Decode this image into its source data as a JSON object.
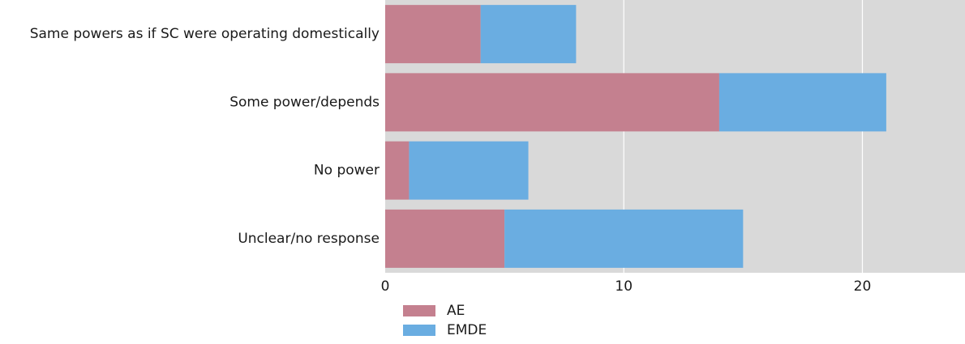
{
  "chart_data": {
    "type": "bar",
    "orientation": "horizontal",
    "stacked": true,
    "categories": [
      "Same powers as if SC were operating domestically",
      "Some power/depends",
      "No power",
      "Unclear/no response"
    ],
    "series": [
      {
        "name": "AE",
        "values": [
          4,
          14,
          1,
          5
        ],
        "color": "#c4808f"
      },
      {
        "name": "EMDE",
        "values": [
          4,
          7,
          5,
          10
        ],
        "color": "#6aade1"
      }
    ],
    "xlim": [
      0,
      24.3
    ],
    "xticks": [
      0,
      10,
      20
    ],
    "xlabel": "",
    "ylabel": "",
    "title": "",
    "grid": true,
    "legend_position": "bottom",
    "colors": {
      "plot_background": "#d9d9d9",
      "grid": "#ffffff"
    }
  }
}
